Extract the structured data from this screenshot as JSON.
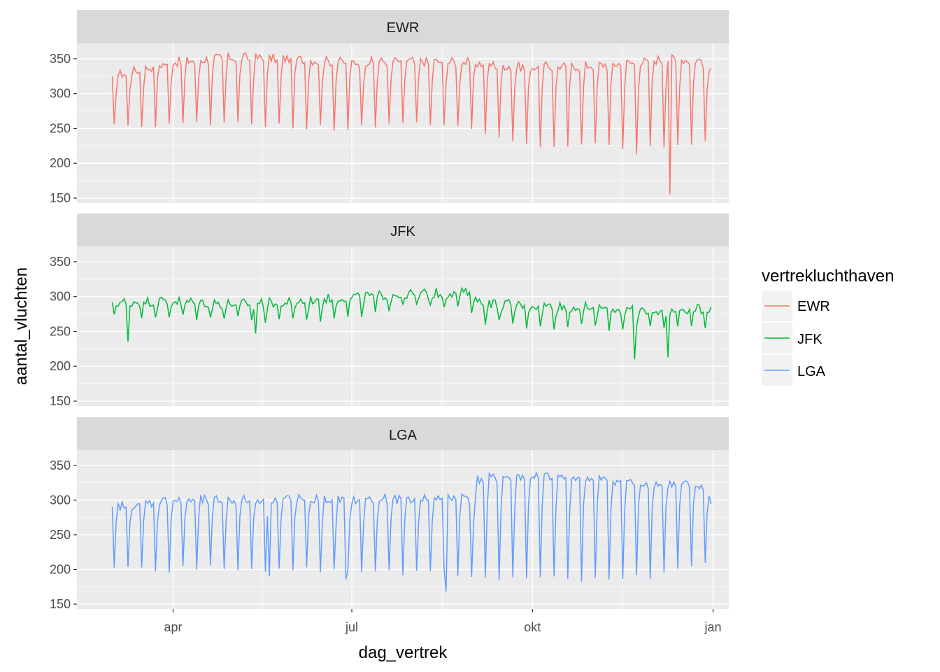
{
  "chart_data": {
    "type": "line",
    "facet_by": "vertrekluchthaven",
    "xlabel": "dag_vertrek",
    "ylabel": "aantal_vluchten",
    "x_tick_labels": [
      "apr",
      "jul",
      "okt",
      "jan"
    ],
    "x_range": [
      "2013-02-11",
      "2014-01-09"
    ],
    "x_data_range": [
      "2013-03-01",
      "2013-12-31"
    ],
    "y_ticks": [
      150,
      200,
      250,
      300,
      350
    ],
    "ylim": [
      143,
      372
    ],
    "grid": true,
    "legend": {
      "title": "vertrekluchthaven",
      "position": "right",
      "entries": [
        "EWR",
        "JFK",
        "LGA"
      ]
    },
    "series": [
      {
        "name": "EWR",
        "color": "#F8766D",
        "weekday_level": [
          [
            0,
            325
          ],
          [
            30,
            345
          ],
          [
            60,
            352
          ],
          [
            90,
            350
          ],
          [
            120,
            345
          ],
          [
            150,
            347
          ],
          [
            180,
            345
          ],
          [
            210,
            338
          ],
          [
            240,
            340
          ],
          [
            270,
            345
          ],
          [
            280,
            350
          ],
          [
            300,
            348
          ],
          [
            305,
            330
          ],
          [
            306,
            310
          ]
        ],
        "weekend_low": [
          [
            0,
            252
          ],
          [
            30,
            256
          ],
          [
            60,
            258
          ],
          [
            90,
            255
          ],
          [
            120,
            250
          ],
          [
            150,
            255
          ],
          [
            180,
            252
          ],
          [
            210,
            228
          ],
          [
            240,
            225
          ],
          [
            270,
            225
          ],
          [
            305,
            228
          ],
          [
            306,
            254
          ]
        ],
        "anomalies": [
          [
            267,
            213
          ],
          [
            284,
            155
          ]
        ]
      },
      {
        "name": "JFK",
        "color": "#00BA38",
        "weekday_level": [
          [
            0,
            292
          ],
          [
            30,
            294
          ],
          [
            60,
            290
          ],
          [
            90,
            292
          ],
          [
            120,
            300
          ],
          [
            150,
            304
          ],
          [
            180,
            306
          ],
          [
            185,
            305
          ],
          [
            186,
            292
          ],
          [
            210,
            288
          ],
          [
            240,
            285
          ],
          [
            270,
            280
          ],
          [
            300,
            282
          ],
          [
            305,
            285
          ],
          [
            306,
            280
          ]
        ],
        "weekend_low": [
          [
            0,
            276
          ],
          [
            30,
            272
          ],
          [
            60,
            268
          ],
          [
            90,
            266
          ],
          [
            120,
            270
          ],
          [
            150,
            285
          ],
          [
            180,
            288
          ],
          [
            186,
            266
          ],
          [
            210,
            258
          ],
          [
            240,
            256
          ],
          [
            270,
            255
          ],
          [
            305,
            260
          ],
          [
            306,
            262
          ]
        ],
        "anomalies": [
          [
            8,
            235
          ],
          [
            73,
            247
          ],
          [
            266,
            210
          ],
          [
            283,
            213
          ]
        ]
      },
      {
        "name": "LGA",
        "color": "#619CFF",
        "weekday_level": [
          [
            0,
            290
          ],
          [
            30,
            300
          ],
          [
            60,
            300
          ],
          [
            90,
            302
          ],
          [
            120,
            300
          ],
          [
            150,
            302
          ],
          [
            180,
            305
          ],
          [
            185,
            300
          ],
          [
            186,
            330
          ],
          [
            210,
            335
          ],
          [
            240,
            332
          ],
          [
            270,
            325
          ],
          [
            300,
            320
          ],
          [
            305,
            300
          ],
          [
            306,
            290
          ]
        ],
        "weekend_low": [
          [
            0,
            200
          ],
          [
            30,
            200
          ],
          [
            60,
            202
          ],
          [
            90,
            200
          ],
          [
            120,
            195
          ],
          [
            150,
            195
          ],
          [
            180,
            195
          ],
          [
            186,
            185
          ],
          [
            210,
            185
          ],
          [
            240,
            185
          ],
          [
            270,
            188
          ],
          [
            300,
            210
          ],
          [
            306,
            220
          ]
        ],
        "anomalies": [
          [
            80,
            190
          ],
          [
            119,
            186
          ],
          [
            170,
            168
          ]
        ]
      }
    ]
  }
}
